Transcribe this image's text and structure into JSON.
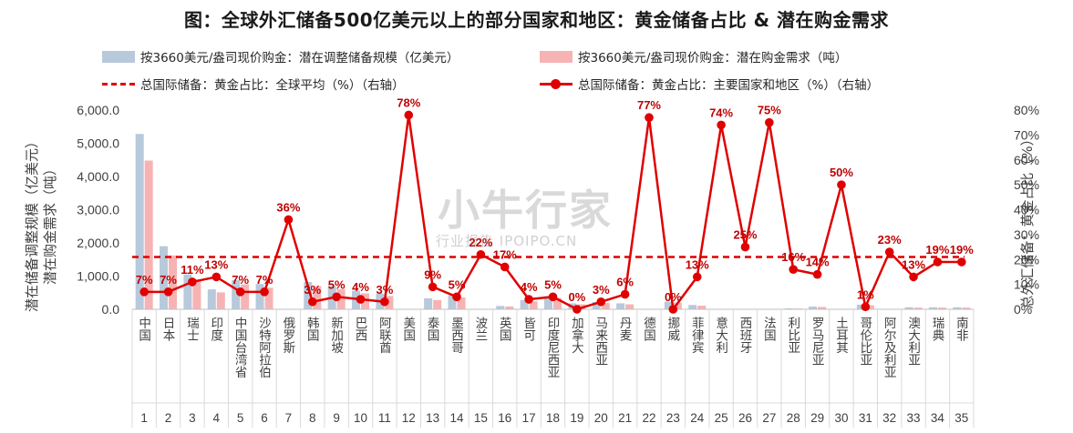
{
  "page": {
    "title": "图：全球外汇储备500亿美元以上的部分国家和地区：黄金储备占比 & 潜在购金需求",
    "watermark": "小牛行家",
    "watermark_sub": "行业报告 IPOIPO.CN"
  },
  "legend": {
    "bar1": "按3660美元/盎司现价购金：潜在调整储备规模（亿美元）",
    "bar2": "按3660美元/盎司现价购金：潜在购金需求（吨）",
    "avg_line": "总国际储备：黄金占比：全球平均（%）（右轴）",
    "main_line": "总国际储备：黄金占比：主要国家和地区（%）（右轴）"
  },
  "colors": {
    "bar1": "#b7c9db",
    "bar2": "#f7b3b3",
    "line": "#e00000",
    "label": "#c00000"
  },
  "chart_data": {
    "type": "bar",
    "categories": [
      "中国",
      "日本",
      "瑞士",
      "印度",
      "中国台湾省",
      "沙特阿拉伯",
      "俄罗斯",
      "韩国",
      "新加坡",
      "巴西",
      "阿联酋",
      "美国",
      "泰国",
      "墨西哥",
      "波兰",
      "英国",
      "皆可",
      "印度尼西亚",
      "加拿大",
      "马来西亚",
      "丹麦",
      "德国",
      "挪威",
      "菲律宾",
      "意大利",
      "西班牙",
      "法国",
      "利比亚",
      "罗马尼亚",
      "土耳其",
      "哥伦比亚",
      "阿尔及利亚",
      "澳大利亚",
      "瑞典",
      "南非"
    ],
    "index_labels": [
      "1",
      "2",
      "3",
      "4",
      "5",
      "6",
      "7",
      "8",
      "9",
      "10",
      "11",
      "12",
      "13",
      "14",
      "15",
      "16",
      "17",
      "18",
      "19",
      "20",
      "21",
      "22",
      "23",
      "24",
      "25",
      "26",
      "27",
      "28",
      "29",
      "30",
      "31",
      "32",
      "33",
      "34",
      "35"
    ],
    "series": [
      {
        "name": "按3660美元/盎司现价购金：潜在调整储备规模（亿美元）",
        "axis": "left",
        "kind": "bar",
        "values": [
          5280,
          1900,
          1050,
          600,
          880,
          760,
          0,
          820,
          700,
          560,
          470,
          0,
          330,
          420,
          0,
          100,
          280,
          400,
          180,
          220,
          180,
          0,
          230,
          130,
          0,
          0,
          0,
          30,
          80,
          0,
          140,
          0,
          60,
          60,
          60
        ]
      },
      {
        "name": "按3660美元/盎司现价购金：潜在购金需求（吨）",
        "axis": "left",
        "kind": "bar",
        "values": [
          4480,
          1620,
          900,
          510,
          750,
          650,
          0,
          700,
          600,
          480,
          400,
          0,
          280,
          360,
          0,
          85,
          240,
          340,
          150,
          190,
          150,
          0,
          200,
          110,
          0,
          0,
          0,
          25,
          70,
          0,
          120,
          0,
          50,
          50,
          50
        ]
      },
      {
        "name": "总国际储备：黄金占比：主要国家和地区（%）（右轴）",
        "axis": "right",
        "kind": "line",
        "values": [
          7,
          7,
          11,
          13,
          7,
          7,
          36,
          3,
          5,
          4,
          3,
          78,
          9,
          5,
          22,
          17,
          4,
          5,
          0,
          3,
          6,
          77,
          0,
          13,
          74,
          25,
          75,
          16,
          14,
          50,
          1,
          23,
          13,
          19,
          19
        ],
        "labels": [
          "7%",
          "7%",
          "11%",
          "13%",
          "7%",
          "7%",
          "36%",
          "3%",
          "5%",
          "4%",
          "3%",
          "78%",
          "9%",
          "5%",
          "22%",
          "17%",
          "4%",
          "5%",
          "0%",
          "3%",
          "6%",
          "77%",
          "0%",
          "13%",
          "74%",
          "25%",
          "75%",
          "16%",
          "14%",
          "50%",
          "1%",
          "23%",
          "13%",
          "19%",
          "19%"
        ]
      },
      {
        "name": "总国际储备：黄金占比：全球平均（%）（右轴）",
        "axis": "right",
        "kind": "hline",
        "value": 21
      }
    ],
    "ylabel_left": "潜在储备调整规模（亿美元）潜在购金需求（吨）",
    "ylabel_left_line1": "潜在储备调整规模（亿美元）",
    "ylabel_left_line2": "潜在购金需求（吨）",
    "ylabel_right": "总外汇储备：黄金占比（%）",
    "ylim_left": [
      0,
      6000
    ],
    "ylim_right": [
      0,
      80
    ],
    "left_ticks": [
      "0.0",
      "1,000.0",
      "2,000.0",
      "3,000.0",
      "4,000.0",
      "5,000.0",
      "6,000.0"
    ],
    "right_ticks": [
      "0%",
      "10%",
      "20%",
      "30%",
      "40%",
      "50%",
      "60%",
      "70%",
      "80%"
    ],
    "grid": false,
    "legend_position": "top"
  }
}
